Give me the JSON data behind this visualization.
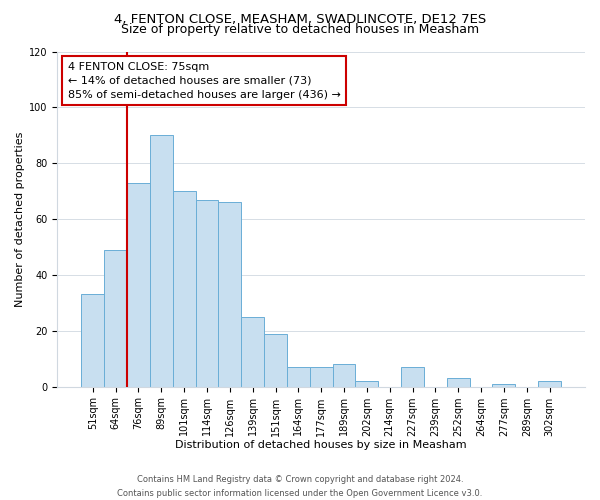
{
  "title": "4, FENTON CLOSE, MEASHAM, SWADLINCOTE, DE12 7ES",
  "subtitle": "Size of property relative to detached houses in Measham",
  "xlabel": "Distribution of detached houses by size in Measham",
  "ylabel": "Number of detached properties",
  "bar_labels": [
    "51sqm",
    "64sqm",
    "76sqm",
    "89sqm",
    "101sqm",
    "114sqm",
    "126sqm",
    "139sqm",
    "151sqm",
    "164sqm",
    "177sqm",
    "189sqm",
    "202sqm",
    "214sqm",
    "227sqm",
    "239sqm",
    "252sqm",
    "264sqm",
    "277sqm",
    "289sqm",
    "302sqm"
  ],
  "bar_values": [
    33,
    49,
    73,
    90,
    70,
    67,
    66,
    25,
    19,
    7,
    7,
    8,
    2,
    0,
    7,
    0,
    3,
    0,
    1,
    0,
    2
  ],
  "bar_color": "#c8dff0",
  "bar_edge_color": "#6aaed6",
  "vline_color": "#cc0000",
  "vline_pos": 2,
  "ylim": [
    0,
    120
  ],
  "yticks": [
    0,
    20,
    40,
    60,
    80,
    100,
    120
  ],
  "annotation_title": "4 FENTON CLOSE: 75sqm",
  "annotation_line1": "← 14% of detached houses are smaller (73)",
  "annotation_line2": "85% of semi-detached houses are larger (436) →",
  "annotation_box_color": "#ffffff",
  "annotation_box_edge": "#cc0000",
  "footer1": "Contains HM Land Registry data © Crown copyright and database right 2024.",
  "footer2": "Contains public sector information licensed under the Open Government Licence v3.0.",
  "grid_color": "#d0d8e0",
  "title_fontsize": 9.5,
  "subtitle_fontsize": 9,
  "axis_label_fontsize": 8,
  "tick_fontsize": 7,
  "annotation_fontsize": 8,
  "footer_fontsize": 6
}
